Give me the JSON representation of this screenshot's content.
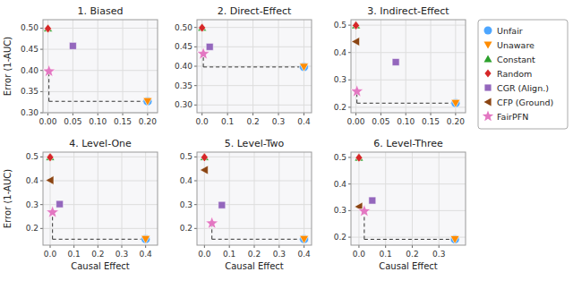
{
  "chart_data": [
    {
      "type": "scatter",
      "title": "1. Biased",
      "y_label": "Error (1-AUC)",
      "grid": true,
      "legend": "right",
      "xlim": [
        -0.01,
        0.22
      ],
      "ylim": [
        0.3,
        0.52
      ],
      "xticks": [
        {
          "value": 0,
          "label": "0.00"
        },
        0.05,
        {
          "value": 0.1,
          "label": "0.10"
        },
        0.15,
        {
          "value": 0.2,
          "label": "0.20"
        }
      ],
      "yticks": [
        {
          "value": 0.3,
          "label": "0.30"
        },
        0.35,
        {
          "value": 0.4,
          "label": "0.40"
        },
        0.45,
        {
          "value": 0.5,
          "label": "0.50"
        }
      ],
      "series": [
        {
          "name": "Unfair",
          "color": "#4da6ff",
          "marker": "circle",
          "x": [
            0.2
          ],
          "values": [
            0.327
          ]
        },
        {
          "name": "Unaware",
          "color": "#ff8c00",
          "marker": "triangle-down",
          "x": [
            0.2
          ],
          "values": [
            0.327
          ]
        },
        {
          "name": "Constant",
          "color": "#2ca02c",
          "marker": "triangle-up",
          "x": [
            0.0
          ],
          "values": [
            0.5
          ]
        },
        {
          "name": "Random",
          "color": "#d62728",
          "marker": "diamond",
          "x": [
            0.0
          ],
          "values": [
            0.499
          ]
        },
        {
          "name": "CGR (Align.)",
          "color": "#9467bd",
          "marker": "square",
          "x": [
            0.05
          ],
          "values": [
            0.458
          ]
        },
        {
          "name": "CFP (Ground)",
          "color": "#8b4513",
          "marker": "triangle-left",
          "x": [
            null
          ],
          "values": [
            null
          ]
        },
        {
          "name": "FairPFN",
          "color": "#e377c2",
          "marker": "star",
          "x": [
            0.002
          ],
          "values": [
            0.398
          ]
        }
      ]
    },
    {
      "type": "scatter",
      "title": "2. Direct-Effect",
      "grid": true,
      "xlim": [
        -0.02,
        0.43
      ],
      "ylim": [
        0.28,
        0.52
      ],
      "xticks": [
        {
          "value": 0,
          "label": "0.0"
        },
        0.1,
        0.2,
        0.3,
        0.4
      ],
      "yticks": [
        {
          "value": 0.3,
          "label": "0.30"
        },
        0.35,
        {
          "value": 0.4,
          "label": "0.40"
        },
        0.45,
        {
          "value": 0.5,
          "label": "0.50"
        }
      ],
      "series": [
        {
          "name": "Unfair",
          "color": "#4da6ff",
          "marker": "circle",
          "x": [
            0.4
          ],
          "values": [
            0.398
          ]
        },
        {
          "name": "Unaware",
          "color": "#ff8c00",
          "marker": "triangle-down",
          "x": [
            0.4
          ],
          "values": [
            0.398
          ]
        },
        {
          "name": "Constant",
          "color": "#2ca02c",
          "marker": "triangle-up",
          "x": [
            0.0
          ],
          "values": [
            0.5
          ]
        },
        {
          "name": "Random",
          "color": "#d62728",
          "marker": "diamond",
          "x": [
            0.0
          ],
          "values": [
            0.499
          ]
        },
        {
          "name": "CGR (Align.)",
          "color": "#9467bd",
          "marker": "square",
          "x": [
            0.03
          ],
          "values": [
            0.45
          ]
        },
        {
          "name": "CFP (Ground)",
          "color": "#8b4513",
          "marker": "triangle-left",
          "x": [
            null
          ],
          "values": [
            null
          ]
        },
        {
          "name": "FairPFN",
          "color": "#e377c2",
          "marker": "star",
          "x": [
            0.005
          ],
          "values": [
            0.432
          ]
        }
      ]
    },
    {
      "type": "scatter",
      "title": "3. Indirect-Effect",
      "grid": true,
      "xlim": [
        -0.01,
        0.22
      ],
      "ylim": [
        0.18,
        0.52
      ],
      "xticks": [
        {
          "value": 0,
          "label": "0.00"
        },
        0.05,
        {
          "value": 0.1,
          "label": "0.10"
        },
        0.15,
        {
          "value": 0.2,
          "label": "0.20"
        }
      ],
      "yticks": [
        0.2,
        0.3,
        0.4,
        0.5
      ],
      "series": [
        {
          "name": "Unfair",
          "color": "#4da6ff",
          "marker": "circle",
          "x": [
            0.2
          ],
          "values": [
            0.215
          ]
        },
        {
          "name": "Unaware",
          "color": "#ff8c00",
          "marker": "triangle-down",
          "x": [
            0.2
          ],
          "values": [
            0.215
          ]
        },
        {
          "name": "Constant",
          "color": "#2ca02c",
          "marker": "triangle-up",
          "x": [
            0.0
          ],
          "values": [
            0.5
          ]
        },
        {
          "name": "Random",
          "color": "#d62728",
          "marker": "diamond",
          "x": [
            0.0
          ],
          "values": [
            0.499
          ]
        },
        {
          "name": "CGR (Align.)",
          "color": "#9467bd",
          "marker": "square",
          "x": [
            0.08
          ],
          "values": [
            0.365
          ]
        },
        {
          "name": "CFP (Ground)",
          "color": "#8b4513",
          "marker": "triangle-left",
          "x": [
            0.0
          ],
          "values": [
            0.44
          ]
        },
        {
          "name": "FairPFN",
          "color": "#e377c2",
          "marker": "star",
          "x": [
            0.002
          ],
          "values": [
            0.258
          ]
        }
      ]
    },
    {
      "type": "scatter",
      "title": "4. Level-One",
      "x_label": "Causal Effect",
      "y_label": "Error (1-AUC)",
      "grid": true,
      "xlim": [
        -0.03,
        0.45
      ],
      "ylim": [
        0.13,
        0.52
      ],
      "xticks": [
        {
          "value": 0,
          "label": "0.0"
        },
        0.1,
        0.2,
        0.3,
        0.4
      ],
      "yticks": [
        0.2,
        0.3,
        0.4,
        0.5
      ],
      "series": [
        {
          "name": "Unfair",
          "color": "#4da6ff",
          "marker": "circle",
          "x": [
            0.4
          ],
          "values": [
            0.155
          ]
        },
        {
          "name": "Unaware",
          "color": "#ff8c00",
          "marker": "triangle-down",
          "x": [
            0.4
          ],
          "values": [
            0.155
          ]
        },
        {
          "name": "Constant",
          "color": "#2ca02c",
          "marker": "triangle-up",
          "x": [
            0.0
          ],
          "values": [
            0.5
          ]
        },
        {
          "name": "Random",
          "color": "#d62728",
          "marker": "diamond",
          "x": [
            0.0
          ],
          "values": [
            0.498
          ]
        },
        {
          "name": "CGR (Align.)",
          "color": "#9467bd",
          "marker": "square",
          "x": [
            0.04
          ],
          "values": [
            0.302
          ]
        },
        {
          "name": "CFP (Ground)",
          "color": "#8b4513",
          "marker": "triangle-left",
          "x": [
            0.0
          ],
          "values": [
            0.402
          ]
        },
        {
          "name": "FairPFN",
          "color": "#e377c2",
          "marker": "star",
          "x": [
            0.01
          ],
          "values": [
            0.268
          ]
        }
      ]
    },
    {
      "type": "scatter",
      "title": "5. Level-Two",
      "x_label": "Causal Effect",
      "grid": true,
      "xlim": [
        -0.03,
        0.43
      ],
      "ylim": [
        0.13,
        0.52
      ],
      "xticks": [
        {
          "value": 0,
          "label": "0.0"
        },
        0.1,
        0.2,
        0.3,
        0.4
      ],
      "yticks": [
        0.2,
        0.3,
        0.4,
        0.5
      ],
      "series": [
        {
          "name": "Unfair",
          "color": "#4da6ff",
          "marker": "circle",
          "x": [
            0.4
          ],
          "values": [
            0.155
          ]
        },
        {
          "name": "Unaware",
          "color": "#ff8c00",
          "marker": "triangle-down",
          "x": [
            0.4
          ],
          "values": [
            0.155
          ]
        },
        {
          "name": "Constant",
          "color": "#2ca02c",
          "marker": "triangle-up",
          "x": [
            0.0
          ],
          "values": [
            0.5
          ]
        },
        {
          "name": "Random",
          "color": "#d62728",
          "marker": "diamond",
          "x": [
            0.0
          ],
          "values": [
            0.498
          ]
        },
        {
          "name": "CGR (Align.)",
          "color": "#9467bd",
          "marker": "square",
          "x": [
            0.07
          ],
          "values": [
            0.298
          ]
        },
        {
          "name": "CFP (Ground)",
          "color": "#8b4513",
          "marker": "triangle-left",
          "x": [
            0.0
          ],
          "values": [
            0.445
          ]
        },
        {
          "name": "FairPFN",
          "color": "#e377c2",
          "marker": "star",
          "x": [
            0.03
          ],
          "values": [
            0.222
          ]
        }
      ]
    },
    {
      "type": "scatter",
      "title": "6. Level-Three",
      "x_label": "Causal Effect",
      "grid": true,
      "xlim": [
        -0.03,
        0.4
      ],
      "ylim": [
        0.17,
        0.52
      ],
      "xticks": [
        {
          "value": 0,
          "label": "0.0"
        },
        0.1,
        0.2,
        0.3
      ],
      "yticks": [
        0.2,
        0.3,
        0.4,
        0.5
      ],
      "series": [
        {
          "name": "Unfair",
          "color": "#4da6ff",
          "marker": "circle",
          "x": [
            0.36
          ],
          "values": [
            0.192
          ]
        },
        {
          "name": "Unaware",
          "color": "#ff8c00",
          "marker": "triangle-down",
          "x": [
            0.36
          ],
          "values": [
            0.192
          ]
        },
        {
          "name": "Constant",
          "color": "#2ca02c",
          "marker": "triangle-up",
          "x": [
            0.0
          ],
          "values": [
            0.5
          ]
        },
        {
          "name": "Random",
          "color": "#d62728",
          "marker": "diamond",
          "x": [
            0.0
          ],
          "values": [
            0.499
          ]
        },
        {
          "name": "CGR (Align.)",
          "color": "#9467bd",
          "marker": "square",
          "x": [
            0.05
          ],
          "values": [
            0.338
          ]
        },
        {
          "name": "CFP (Ground)",
          "color": "#8b4513",
          "marker": "triangle-left",
          "x": [
            0.0
          ],
          "values": [
            0.315
          ]
        },
        {
          "name": "FairPFN",
          "color": "#e377c2",
          "marker": "star",
          "x": [
            0.02
          ],
          "values": [
            0.298
          ]
        }
      ]
    }
  ]
}
